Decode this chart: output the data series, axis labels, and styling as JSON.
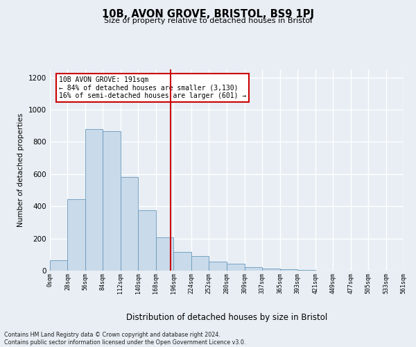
{
  "title": "10B, AVON GROVE, BRISTOL, BS9 1PJ",
  "subtitle": "Size of property relative to detached houses in Bristol",
  "xlabel": "Distribution of detached houses by size in Bristol",
  "ylabel": "Number of detached properties",
  "bar_color": "#c9daea",
  "bar_edge_color": "#6699bb",
  "background_color": "#e8eef4",
  "plot_bg_color": "#e8eef4",
  "grid_color": "#ffffff",
  "vline_x": 191,
  "vline_color": "#cc0000",
  "annotation_lines": [
    "10B AVON GROVE: 191sqm",
    "← 84% of detached houses are smaller (3,130)",
    "16% of semi-detached houses are larger (601) →"
  ],
  "annotation_box_color": "#cc0000",
  "bin_edges": [
    0,
    28,
    56,
    84,
    112,
    140,
    168,
    196,
    224,
    252,
    280,
    309,
    337,
    365,
    393,
    421,
    449,
    477,
    505,
    533,
    561
  ],
  "bin_labels": [
    "0sqm",
    "28sqm",
    "56sqm",
    "84sqm",
    "112sqm",
    "140sqm",
    "168sqm",
    "196sqm",
    "224sqm",
    "252sqm",
    "280sqm",
    "309sqm",
    "337sqm",
    "365sqm",
    "393sqm",
    "421sqm",
    "449sqm",
    "477sqm",
    "505sqm",
    "533sqm",
    "561sqm"
  ],
  "bar_heights": [
    65,
    445,
    880,
    865,
    580,
    375,
    205,
    115,
    90,
    58,
    45,
    22,
    15,
    8,
    5,
    2,
    1,
    0,
    0,
    0
  ],
  "ylim": [
    0,
    1250
  ],
  "yticks": [
    0,
    200,
    400,
    600,
    800,
    1000,
    1200
  ],
  "footer_lines": [
    "Contains HM Land Registry data © Crown copyright and database right 2024.",
    "Contains public sector information licensed under the Open Government Licence v3.0."
  ]
}
